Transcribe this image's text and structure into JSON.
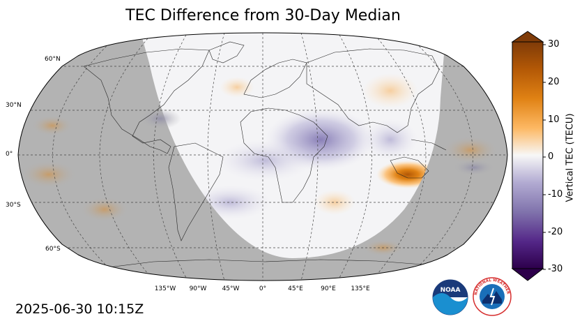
{
  "title": "TEC Difference from 30-Day Median",
  "timestamp": "2025-06-30 10:15Z",
  "map": {
    "projection": "robinson",
    "night_shade_color": "#b3b3b3",
    "day_color": "#f4f4f6",
    "gridlines": "dashed",
    "lat_labels": [
      "60°N",
      "30°N",
      "0°",
      "30°S",
      "60°S"
    ],
    "lon_labels": [
      "135°W",
      "90°W",
      "45°W",
      "0°",
      "45°E",
      "90°E",
      "135°E"
    ],
    "anomalies": [
      {
        "region": "central africa",
        "sign": "negative"
      },
      {
        "region": "east indian ocean / indonesia",
        "sign": "positive"
      },
      {
        "region": "west pacific equator",
        "sign": "positive"
      },
      {
        "region": "south atlantic",
        "sign": "negative"
      }
    ]
  },
  "colorbar": {
    "label": "Vertical TEC (TECU)",
    "ticks": [
      "30",
      "20",
      "10",
      "0",
      "-10",
      "-20",
      "-30"
    ],
    "min": -30,
    "max": 30,
    "colormap": "PuOr_r",
    "color_low": "#2d004b",
    "color_high": "#7f3b08"
  },
  "logos": [
    {
      "name": "noaa",
      "text": "NOAA"
    },
    {
      "name": "nws",
      "text": "NATIONAL WEATHER SERVICE"
    }
  ]
}
